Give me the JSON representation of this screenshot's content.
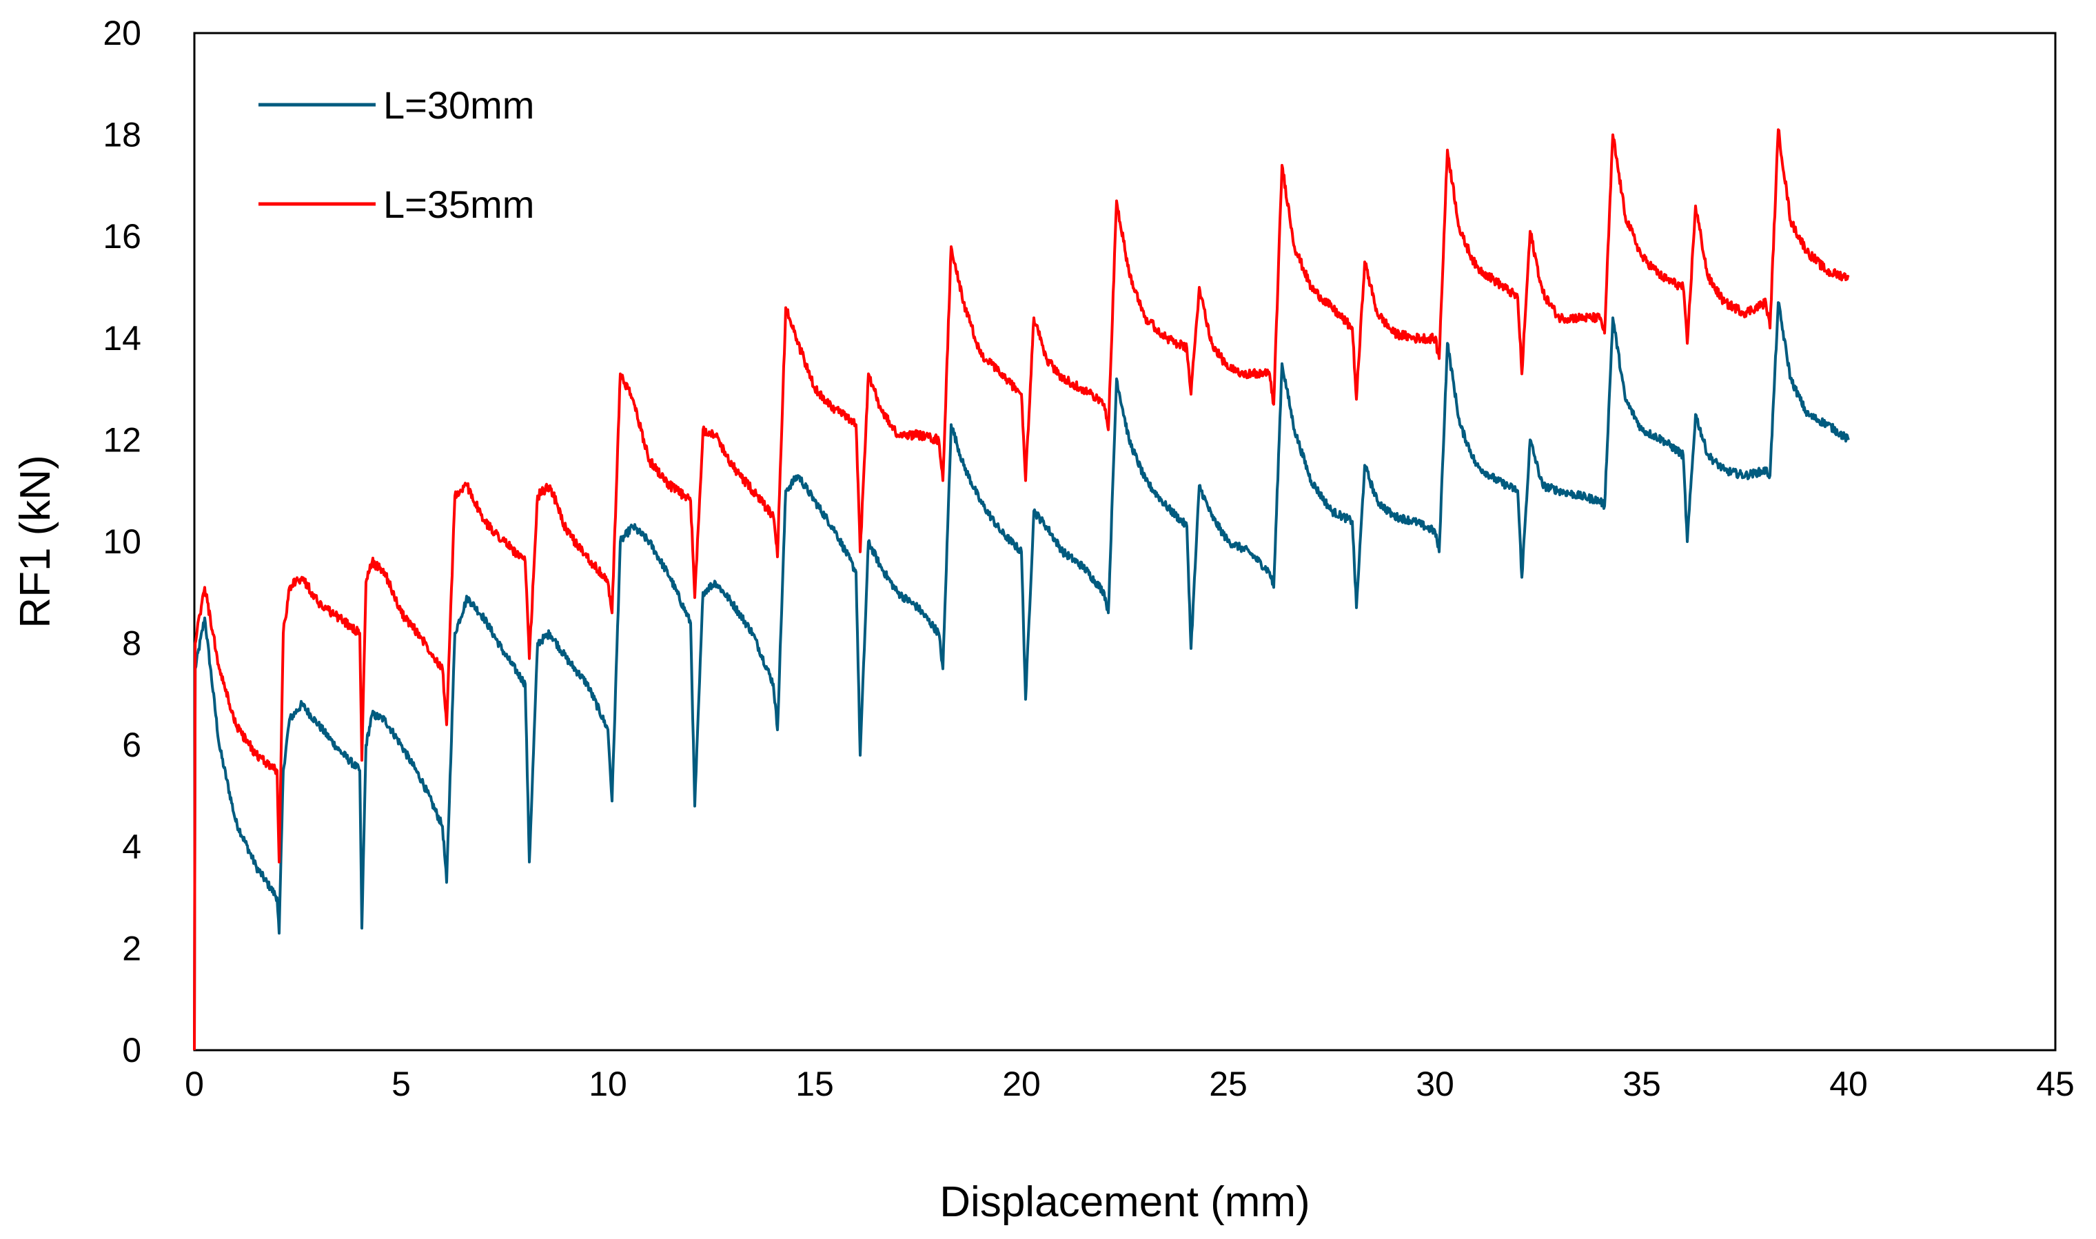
{
  "chart_data": {
    "type": "line",
    "title": "",
    "xlabel": "Displacement (mm)",
    "ylabel": "RF1 (kN)",
    "xlim": [
      0,
      45
    ],
    "ylim": [
      0,
      20
    ],
    "xticks": [
      "0",
      "5",
      "10",
      "15",
      "20",
      "25",
      "30",
      "35",
      "40",
      "45"
    ],
    "yticks": [
      "0",
      "2",
      "4",
      "6",
      "8",
      "10",
      "12",
      "14",
      "16",
      "18",
      "20"
    ],
    "grid": false,
    "legend_position": "top-left",
    "series": [
      {
        "name": "L=30mm",
        "color": "#005b7f",
        "x": [
          0,
          0.02,
          0.25,
          0.6,
          1.0,
          1.5,
          2.0,
          2.05,
          2.15,
          2.3,
          2.6,
          3.0,
          3.5,
          4.0,
          4.05,
          4.15,
          4.3,
          4.6,
          5.0,
          5.5,
          6.0,
          6.1,
          6.3,
          6.6,
          7.0,
          7.5,
          8.0,
          8.1,
          8.3,
          8.6,
          9.0,
          9.5,
          10.0,
          10.1,
          10.3,
          10.6,
          11.0,
          11.5,
          12.0,
          12.1,
          12.3,
          12.6,
          13.0,
          13.5,
          14.0,
          14.1,
          14.3,
          14.6,
          15.0,
          15.5,
          16.0,
          16.1,
          16.3,
          16.6,
          17.0,
          17.5,
          18.0,
          18.1,
          18.3,
          18.6,
          19.0,
          19.5,
          20.0,
          20.1,
          20.3,
          20.6,
          21.0,
          21.5,
          22.0,
          22.1,
          22.3,
          22.6,
          23.0,
          23.5,
          24.0,
          24.1,
          24.3,
          24.6,
          25.0,
          25.5,
          26.0,
          26.1,
          26.3,
          26.6,
          27.0,
          27.5,
          28.0,
          28.1,
          28.3,
          28.6,
          29.0,
          29.5,
          30.0,
          30.1,
          30.3,
          30.6,
          31.0,
          31.5,
          32.0,
          32.1,
          32.3,
          32.6,
          33.0,
          33.5,
          34.0,
          34.1,
          34.3,
          34.6,
          35.0,
          35.5,
          36.0,
          36.1,
          36.3,
          36.6,
          37.0,
          37.5,
          38.0,
          38.1,
          38.3,
          38.6,
          39.0,
          39.5,
          40.0
        ],
        "y": [
          0,
          7.5,
          8.5,
          6.0,
          4.5,
          3.6,
          3.0,
          2.3,
          5.5,
          6.5,
          6.8,
          6.4,
          5.9,
          5.5,
          2.4,
          6.0,
          6.6,
          6.5,
          6.0,
          5.3,
          4.4,
          3.3,
          8.2,
          8.9,
          8.5,
          7.8,
          7.2,
          3.7,
          8.0,
          8.2,
          7.7,
          7.2,
          6.3,
          4.9,
          10.0,
          10.3,
          10.0,
          9.3,
          8.4,
          4.8,
          9.0,
          9.2,
          8.8,
          8.2,
          7.2,
          6.3,
          11.0,
          11.3,
          10.8,
          10.2,
          9.4,
          5.8,
          10.0,
          9.5,
          9.0,
          8.7,
          8.2,
          7.5,
          12.3,
          11.5,
          10.8,
          10.2,
          9.8,
          6.9,
          10.6,
          10.3,
          9.8,
          9.5,
          9.0,
          8.6,
          13.2,
          12.0,
          11.2,
          10.7,
          10.3,
          7.9,
          11.1,
          10.5,
          10.0,
          9.8,
          9.4,
          9.1,
          13.5,
          12.2,
          11.2,
          10.6,
          10.4,
          8.7,
          11.5,
          10.8,
          10.5,
          10.4,
          10.2,
          9.8,
          13.9,
          12.3,
          11.5,
          11.2,
          11.0,
          9.3,
          12.0,
          11.1,
          11.0,
          10.9,
          10.8,
          10.7,
          14.4,
          12.8,
          12.2,
          12.0,
          11.7,
          10.0,
          12.5,
          11.7,
          11.4,
          11.3,
          11.4,
          11.3,
          14.7,
          13.2,
          12.5,
          12.3,
          12.0
        ],
        "noise": 0.08
      },
      {
        "name": "L=35mm",
        "color": "#ff0000",
        "x": [
          0,
          0.02,
          0.25,
          0.6,
          1.0,
          1.5,
          2.0,
          2.05,
          2.15,
          2.3,
          2.6,
          3.0,
          3.5,
          4.0,
          4.05,
          4.15,
          4.3,
          4.6,
          5.0,
          5.5,
          6.0,
          6.1,
          6.3,
          6.6,
          7.0,
          7.5,
          8.0,
          8.1,
          8.3,
          8.6,
          9.0,
          9.5,
          10.0,
          10.1,
          10.3,
          10.6,
          11.0,
          11.5,
          12.0,
          12.1,
          12.3,
          12.6,
          13.0,
          13.5,
          14.0,
          14.1,
          14.3,
          14.6,
          15.0,
          15.5,
          16.0,
          16.1,
          16.3,
          16.6,
          17.0,
          17.5,
          18.0,
          18.1,
          18.3,
          18.6,
          19.0,
          19.5,
          20.0,
          20.1,
          20.3,
          20.6,
          21.0,
          21.5,
          22.0,
          22.1,
          22.3,
          22.6,
          23.0,
          23.5,
          24.0,
          24.1,
          24.3,
          24.6,
          25.0,
          25.5,
          26.0,
          26.1,
          26.3,
          26.6,
          27.0,
          27.5,
          28.0,
          28.1,
          28.3,
          28.6,
          29.0,
          29.5,
          30.0,
          30.1,
          30.3,
          30.6,
          31.0,
          31.5,
          32.0,
          32.1,
          32.3,
          32.6,
          33.0,
          33.5,
          34.0,
          34.1,
          34.3,
          34.6,
          35.0,
          35.5,
          36.0,
          36.1,
          36.3,
          36.6,
          37.0,
          37.5,
          38.0,
          38.1,
          38.3,
          38.6,
          39.0,
          39.5,
          40.0
        ],
        "y": [
          0,
          8.0,
          9.1,
          7.5,
          6.4,
          5.8,
          5.5,
          3.7,
          8.2,
          9.1,
          9.3,
          8.8,
          8.5,
          8.2,
          5.7,
          9.2,
          9.6,
          9.4,
          8.6,
          8.1,
          7.5,
          6.4,
          10.9,
          11.1,
          10.4,
          10.0,
          9.6,
          7.7,
          10.9,
          11.1,
          10.2,
          9.7,
          9.2,
          8.6,
          13.3,
          12.8,
          11.6,
          11.1,
          10.8,
          8.9,
          12.2,
          12.1,
          11.5,
          11.0,
          10.5,
          9.7,
          14.6,
          13.9,
          13.0,
          12.6,
          12.3,
          9.8,
          13.3,
          12.6,
          12.1,
          12.1,
          12.0,
          11.2,
          15.8,
          14.7,
          13.7,
          13.3,
          12.9,
          11.2,
          14.4,
          13.6,
          13.2,
          13.0,
          12.7,
          12.2,
          16.7,
          15.3,
          14.4,
          14.0,
          13.8,
          12.9,
          15.0,
          13.9,
          13.4,
          13.3,
          13.3,
          12.7,
          17.4,
          15.8,
          15.0,
          14.6,
          14.2,
          12.8,
          15.5,
          14.5,
          14.1,
          14.0,
          14.0,
          13.6,
          17.7,
          16.1,
          15.4,
          15.1,
          14.8,
          13.3,
          16.1,
          14.9,
          14.4,
          14.4,
          14.4,
          14.1,
          18.0,
          16.4,
          15.6,
          15.2,
          15.0,
          13.9,
          16.6,
          15.2,
          14.7,
          14.5,
          14.7,
          14.2,
          18.1,
          16.3,
          15.7,
          15.3,
          15.2
        ],
        "noise": 0.09
      }
    ]
  }
}
